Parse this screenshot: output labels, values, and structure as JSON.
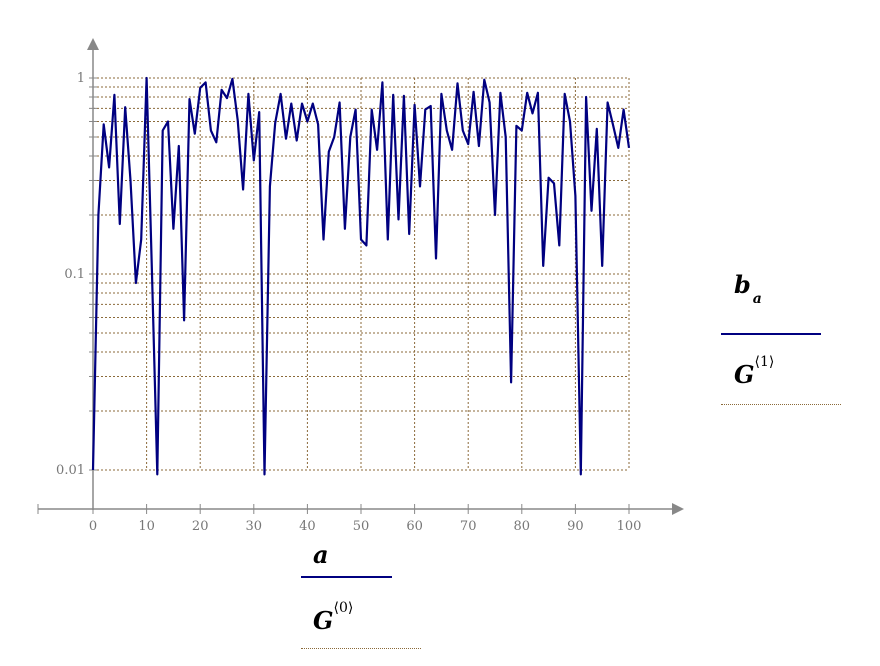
{
  "chart_data": {
    "type": "line",
    "title": "",
    "xlabel": "a",
    "ylabel": "b_a",
    "x_scale": "linear",
    "y_scale": "log",
    "xlim": [
      0,
      100
    ],
    "ylim": [
      0.01,
      1
    ],
    "grid": true,
    "x_ticks": [
      "0",
      "10",
      "20",
      "30",
      "40",
      "50",
      "60",
      "70",
      "80",
      "90",
      "100"
    ],
    "y_ticks": [
      "0.01",
      "0.1",
      "1"
    ],
    "series": [
      {
        "name": "b_a",
        "color": "#000080",
        "x": [
          0,
          1,
          2,
          3,
          4,
          5,
          6,
          7,
          8,
          9,
          10,
          11,
          12,
          13,
          14,
          15,
          16,
          17,
          18,
          19,
          20,
          21,
          22,
          23,
          24,
          25,
          26,
          27,
          28,
          29,
          30,
          31,
          32,
          33,
          34,
          35,
          36,
          37,
          38,
          39,
          40,
          41,
          42,
          43,
          44,
          45,
          46,
          47,
          48,
          49,
          50,
          51,
          52,
          53,
          54,
          55,
          56,
          57,
          58,
          59,
          60,
          61,
          62,
          63,
          64,
          65,
          66,
          67,
          68,
          69,
          70,
          71,
          72,
          73,
          74,
          75,
          76,
          77,
          78,
          79,
          80,
          81,
          82,
          83,
          84,
          85,
          86,
          87,
          88,
          89,
          90,
          91,
          92,
          93,
          94,
          95,
          96,
          97,
          98,
          99,
          100
        ],
        "values": [
          0.01,
          0.2,
          0.58,
          0.35,
          0.82,
          0.18,
          0.71,
          0.3,
          0.09,
          0.15,
          1.0,
          0.1,
          0.0095,
          0.54,
          0.6,
          0.17,
          0.45,
          0.058,
          0.78,
          0.52,
          0.89,
          0.95,
          0.54,
          0.47,
          0.87,
          0.79,
          0.99,
          0.61,
          0.27,
          0.83,
          0.38,
          0.67,
          0.0095,
          0.28,
          0.59,
          0.83,
          0.49,
          0.74,
          0.48,
          0.74,
          0.6,
          0.74,
          0.58,
          0.15,
          0.42,
          0.5,
          0.75,
          0.17,
          0.5,
          0.69,
          0.15,
          0.14,
          0.69,
          0.43,
          0.95,
          0.15,
          0.82,
          0.19,
          0.81,
          0.16,
          0.73,
          0.28,
          0.69,
          0.72,
          0.12,
          0.83,
          0.54,
          0.43,
          0.94,
          0.54,
          0.46,
          0.85,
          0.45,
          0.98,
          0.75,
          0.2,
          0.84,
          0.5,
          0.028,
          0.57,
          0.54,
          0.84,
          0.66,
          0.84,
          0.11,
          0.31,
          0.29,
          0.14,
          0.83,
          0.6,
          0.25,
          0.0095,
          0.8,
          0.21,
          0.55,
          0.11,
          0.75,
          0.58,
          0.44,
          0.69,
          0.44
        ]
      }
    ],
    "legend": {
      "y_trace": {
        "label": "b",
        "subscript": "a",
        "line_style": "solid",
        "color": "#000080"
      },
      "y_grid": {
        "label": "G",
        "superscript": "⟨1⟩",
        "line_style": "dotted",
        "color": "#8b6a3a"
      },
      "x_trace": {
        "label": "a",
        "line_style": "solid",
        "color": "#000080"
      },
      "x_grid": {
        "label": "G",
        "superscript": "⟨0⟩",
        "line_style": "dotted",
        "color": "#8b6a3a"
      }
    }
  },
  "colors": {
    "trace": "#000080",
    "grid": "#8b6a3a",
    "axis": "#888888",
    "tick_text": "#777777"
  }
}
